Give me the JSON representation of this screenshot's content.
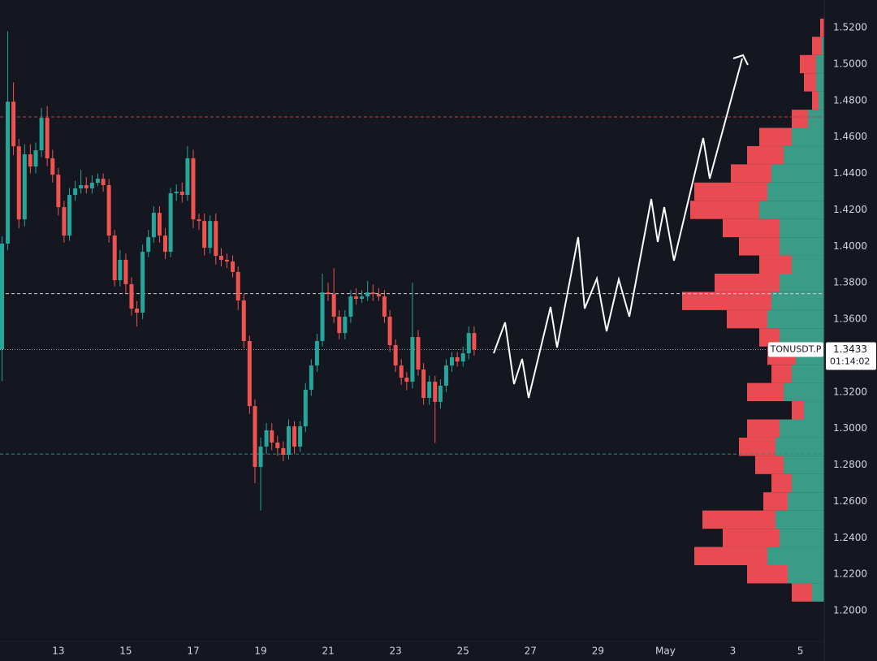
{
  "chart_data": {
    "type": "candlestick",
    "symbol": "TONUSDT.P",
    "last_price": 1.3433,
    "countdown": "01:14:02",
    "up_color": "#26a69a",
    "down_color": "#ef5350",
    "grid": false,
    "xlim": [
      11.27,
      35.71
    ],
    "ylim": [
      1.1831,
      1.5352
    ],
    "xticks": [
      13,
      15,
      17,
      19,
      21,
      23,
      25,
      27,
      29,
      {
        "value": 31,
        "label": "May"
      },
      {
        "value": 33,
        "label": "3"
      },
      {
        "value": 35,
        "label": "5"
      }
    ],
    "yticks": [
      {
        "value": 1.52,
        "label": "1.5200"
      },
      {
        "value": 1.5,
        "label": "1.5000"
      },
      {
        "value": 1.48,
        "label": "1.4800"
      },
      {
        "value": 1.46,
        "label": "1.4600"
      },
      {
        "value": 1.44,
        "label": "1.4400"
      },
      {
        "value": 1.42,
        "label": "1.4200"
      },
      {
        "value": 1.4,
        "label": "1.4000"
      },
      {
        "value": 1.38,
        "label": "1.3800"
      },
      {
        "value": 1.36,
        "label": "1.3600"
      },
      {
        "value": 1.32,
        "label": "1.3200"
      },
      {
        "value": 1.3,
        "label": "1.3000"
      },
      {
        "value": 1.28,
        "label": "1.2800"
      },
      {
        "value": 1.26,
        "label": "1.2600"
      },
      {
        "value": 1.24,
        "label": "1.2400"
      },
      {
        "value": 1.22,
        "label": "1.2200"
      },
      {
        "value": 1.2,
        "label": "1.2000"
      }
    ],
    "x": [
      11.33,
      11.5,
      11.67,
      11.83,
      12,
      12.17,
      12.33,
      12.5,
      12.67,
      12.83,
      13,
      13.17,
      13.33,
      13.5,
      13.67,
      13.83,
      14,
      14.17,
      14.33,
      14.5,
      14.67,
      14.83,
      15,
      15.17,
      15.33,
      15.5,
      15.67,
      15.83,
      16,
      16.17,
      16.33,
      16.5,
      16.67,
      16.83,
      17,
      17.17,
      17.33,
      17.5,
      17.67,
      17.83,
      18,
      18.17,
      18.33,
      18.5,
      18.67,
      18.83,
      19,
      19.17,
      19.33,
      19.5,
      19.67,
      19.83,
      20,
      20.17,
      20.33,
      20.5,
      20.67,
      20.83,
      21,
      21.17,
      21.33,
      21.5,
      21.67,
      21.83,
      22,
      22.17,
      22.33,
      22.5,
      22.67,
      22.83,
      23,
      23.17,
      23.33,
      23.5,
      23.67,
      23.83,
      24,
      24.17,
      24.33,
      24.5,
      24.67,
      24.83,
      25,
      25.17,
      25.33
    ],
    "open": [
      1.3435,
      1.4015,
      1.4794,
      1.4549,
      1.4148,
      1.4505,
      1.4438,
      1.4527,
      1.4705,
      1.4483,
      1.4393,
      1.4215,
      1.4059,
      1.4282,
      1.4318,
      1.4336,
      1.4318,
      1.4349,
      1.4371,
      1.4336,
      1.4059,
      1.3814,
      1.3926,
      1.3792,
      1.3658,
      1.3636,
      1.397,
      1.405,
      1.4184,
      1.4059,
      1.397,
      1.4291,
      1.43,
      1.4282,
      1.4483,
      1.4148,
      1.4139,
      1.3992,
      1.4139,
      1.3948,
      1.3926,
      1.3917,
      1.3859,
      1.3703,
      1.348,
      1.3123,
      1.2789,
      1.2901,
      1.299,
      1.2923,
      1.2892,
      1.2856,
      1.3012,
      1.2901,
      1.3012,
      1.3213,
      1.3346,
      1.348,
      1.3747,
      1.3738,
      1.3614,
      1.3524,
      1.3614,
      1.3725,
      1.3712,
      1.3725,
      1.3747,
      1.3738,
      1.3725,
      1.3614,
      1.3458,
      1.3346,
      1.3279,
      1.3257,
      1.3502,
      1.3324,
      1.3168,
      1.3257,
      1.3146,
      1.3235,
      1.3346,
      1.3391,
      1.3368,
      1.3413,
      1.3524
    ],
    "high": [
      1.4055,
      1.518,
      1.49,
      1.459,
      1.456,
      1.456,
      1.457,
      1.476,
      1.477,
      1.453,
      1.443,
      1.425,
      1.432,
      1.436,
      1.442,
      1.438,
      1.439,
      1.44,
      1.44,
      1.437,
      1.409,
      1.398,
      1.396,
      1.383,
      1.37,
      1.401,
      1.409,
      1.422,
      1.422,
      1.41,
      1.432,
      1.434,
      1.435,
      1.455,
      1.453,
      1.418,
      1.418,
      1.417,
      1.418,
      1.399,
      1.396,
      1.395,
      1.389,
      1.374,
      1.351,
      1.316,
      1.295,
      1.303,
      1.303,
      1.296,
      1.293,
      1.305,
      1.304,
      1.304,
      1.325,
      1.338,
      1.352,
      1.385,
      1.38,
      1.388,
      1.365,
      1.365,
      1.376,
      1.377,
      1.376,
      1.381,
      1.379,
      1.377,
      1.376,
      1.365,
      1.349,
      1.338,
      1.331,
      1.38,
      1.354,
      1.336,
      1.329,
      1.329,
      1.327,
      1.338,
      1.342,
      1.342,
      1.345,
      1.356,
      1.356
    ],
    "low": [
      1.326,
      1.398,
      1.45,
      1.41,
      1.411,
      1.44,
      1.44,
      1.449,
      1.444,
      1.435,
      1.417,
      1.402,
      1.403,
      1.425,
      1.429,
      1.429,
      1.429,
      1.433,
      1.43,
      1.402,
      1.378,
      1.378,
      1.374,
      1.362,
      1.356,
      1.36,
      1.394,
      1.402,
      1.402,
      1.393,
      1.394,
      1.425,
      1.424,
      1.425,
      1.41,
      1.409,
      1.395,
      1.396,
      1.39,
      1.389,
      1.388,
      1.383,
      1.365,
      1.344,
      1.308,
      1.27,
      1.255,
      1.286,
      1.288,
      1.285,
      1.282,
      1.283,
      1.286,
      1.287,
      1.298,
      1.318,
      1.331,
      1.345,
      1.37,
      1.358,
      1.349,
      1.349,
      1.358,
      1.368,
      1.369,
      1.37,
      1.37,
      1.37,
      1.358,
      1.342,
      1.331,
      1.324,
      1.321,
      1.322,
      1.329,
      1.313,
      1.313,
      1.292,
      1.311,
      1.32,
      1.331,
      1.334,
      1.334,
      1.338,
      1.34
    ],
    "close": [
      1.4015,
      1.4794,
      1.4549,
      1.4148,
      1.4505,
      1.4438,
      1.4527,
      1.4705,
      1.4483,
      1.4393,
      1.4215,
      1.4059,
      1.4282,
      1.4318,
      1.4336,
      1.4318,
      1.4349,
      1.4371,
      1.4336,
      1.4059,
      1.3814,
      1.3926,
      1.3792,
      1.3658,
      1.3636,
      1.397,
      1.405,
      1.4184,
      1.4059,
      1.397,
      1.4291,
      1.43,
      1.4282,
      1.4483,
      1.4148,
      1.4139,
      1.3992,
      1.4139,
      1.3948,
      1.3926,
      1.3917,
      1.3859,
      1.3703,
      1.348,
      1.3123,
      1.2789,
      1.2901,
      1.299,
      1.2923,
      1.2892,
      1.2856,
      1.3012,
      1.2901,
      1.3012,
      1.3213,
      1.3346,
      1.348,
      1.3747,
      1.3738,
      1.3614,
      1.3524,
      1.3614,
      1.3725,
      1.3712,
      1.3725,
      1.3747,
      1.3738,
      1.3725,
      1.3614,
      1.3458,
      1.3346,
      1.3279,
      1.3257,
      1.3502,
      1.3324,
      1.3168,
      1.3257,
      1.3146,
      1.3235,
      1.3346,
      1.3391,
      1.3368,
      1.3413,
      1.3524,
      1.3433
    ],
    "levels": {
      "values": [
        1.471,
        1.374,
        1.286
      ],
      "colors": [
        "#b8434b",
        "#cfd2da",
        "#2a8c7c"
      ]
    },
    "profile": {
      "buy_color": "#3a9b86",
      "sell_color": "#e84b52",
      "price": [
        1.52,
        1.51,
        1.5,
        1.49,
        1.48,
        1.47,
        1.46,
        1.45,
        1.44,
        1.43,
        1.42,
        1.41,
        1.4,
        1.39,
        1.38,
        1.37,
        1.36,
        1.35,
        1.34,
        1.33,
        1.32,
        1.31,
        1.3,
        1.29,
        1.28,
        1.27,
        1.26,
        1.25,
        1.24,
        1.23,
        1.22,
        1.21
      ],
      "buy": [
        0,
        3,
        10,
        10,
        7,
        20,
        40,
        50,
        65,
        70,
        80,
        55,
        55,
        40,
        55,
        65,
        70,
        55,
        35,
        40,
        50,
        25,
        55,
        60,
        50,
        40,
        45,
        60,
        55,
        70,
        45,
        15
      ],
      "sell": [
        5,
        12,
        20,
        15,
        8,
        20,
        40,
        45,
        50,
        90,
        85,
        70,
        50,
        40,
        80,
        110,
        50,
        25,
        35,
        25,
        45,
        15,
        40,
        45,
        35,
        25,
        30,
        90,
        70,
        90,
        50,
        25
      ]
    }
  }
}
